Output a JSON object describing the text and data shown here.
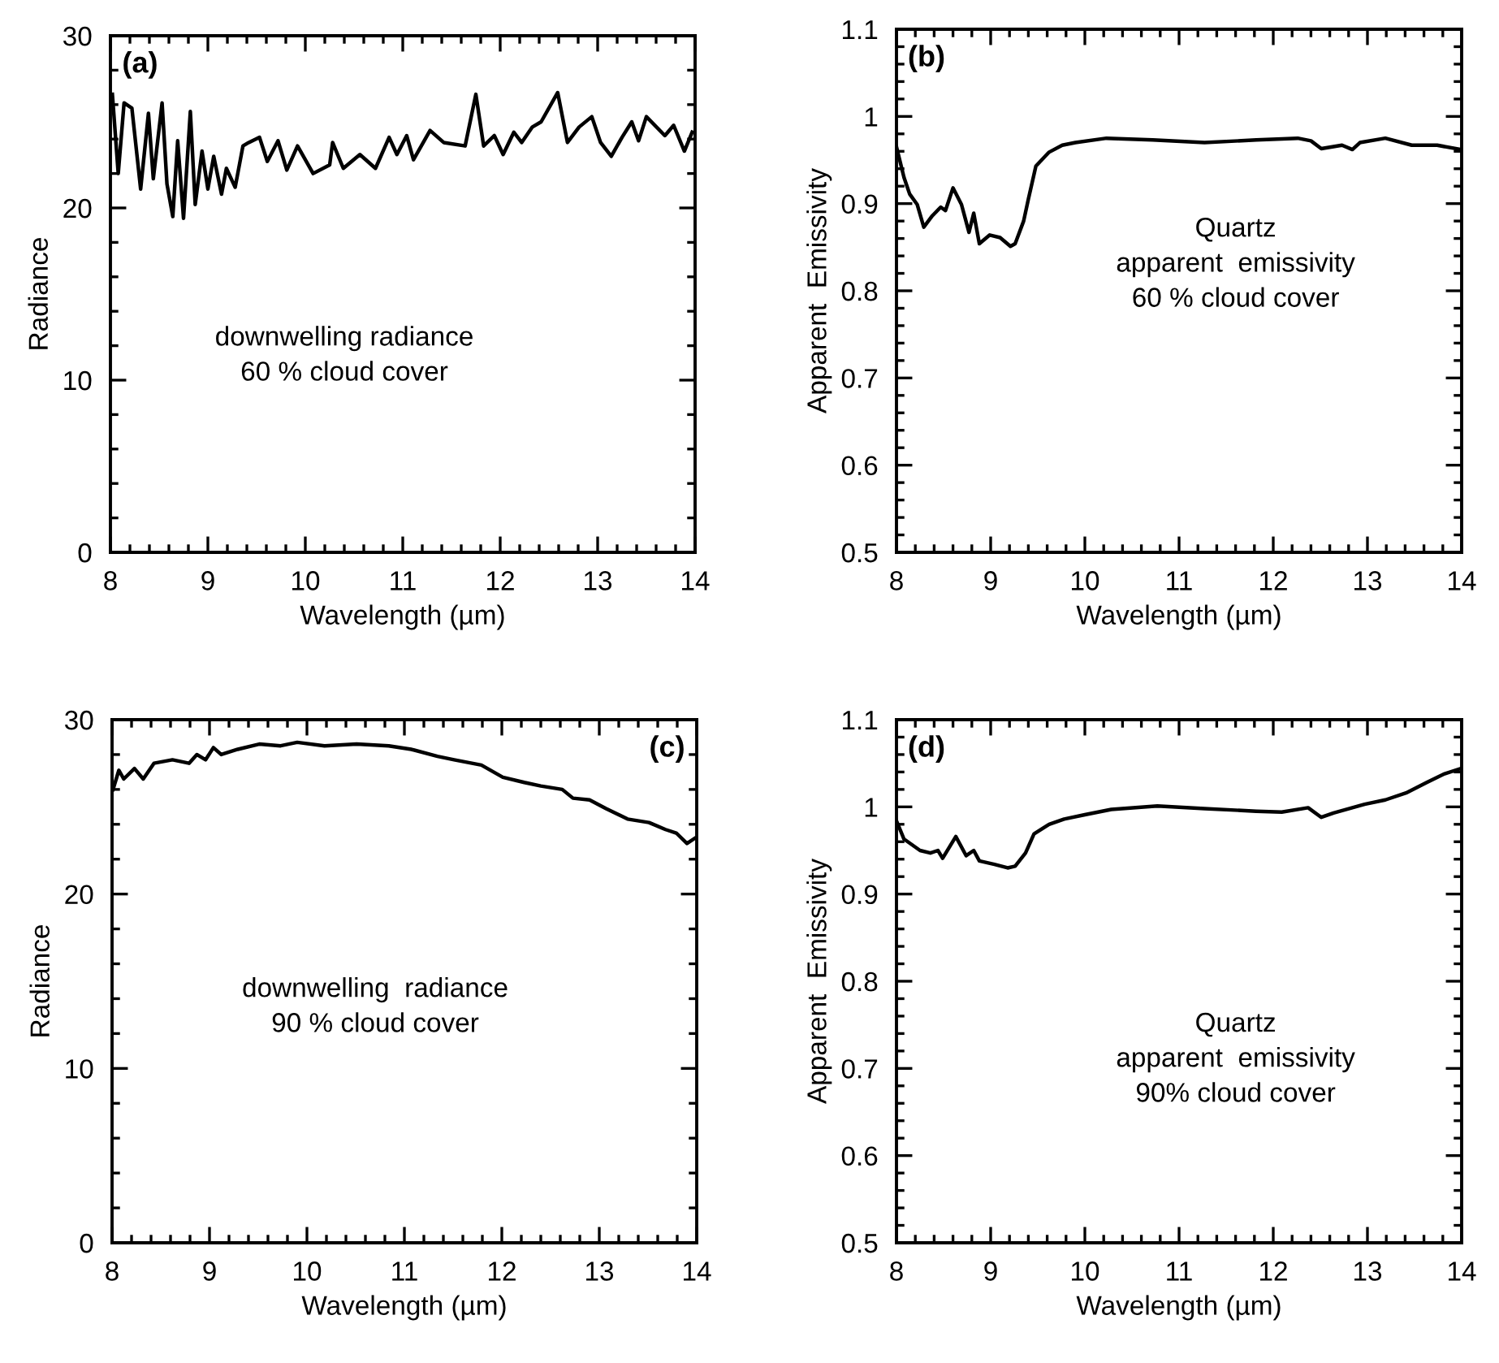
{
  "chart_data": [
    {
      "type": "line",
      "xlabel": "Wavelength (µm)",
      "ylabel": "Radiance",
      "xlim": [
        8,
        14
      ],
      "ylim": [
        0,
        30
      ],
      "xticks": [
        8,
        9,
        10,
        11,
        12,
        13,
        14
      ],
      "yticks": [
        0,
        10,
        20,
        30
      ],
      "grid": false,
      "legend": false,
      "annotations": [
        "(a)",
        "downwelling radiance\n60 % cloud cover"
      ],
      "series": [
        {
          "color": "#000000",
          "x": [
            8.02,
            8.08,
            8.14,
            8.22,
            8.31,
            8.39,
            8.44,
            8.53,
            8.58,
            8.64,
            8.69,
            8.75,
            8.82,
            8.87,
            8.94,
            9.0,
            9.06,
            9.14,
            9.19,
            9.28,
            9.36,
            9.42,
            9.53,
            9.61,
            9.72,
            9.81,
            9.92,
            10.08,
            10.25,
            10.28,
            10.39,
            10.56,
            10.72,
            10.86,
            10.94,
            11.04,
            11.11,
            11.28,
            11.42,
            11.64,
            11.75,
            11.83,
            11.94,
            12.03,
            12.14,
            12.22,
            12.33,
            12.42,
            12.59,
            12.69,
            12.81,
            12.94,
            13.03,
            13.14,
            13.25,
            13.35,
            13.42,
            13.5,
            13.69,
            13.78,
            13.89,
            13.97
          ],
          "values": [
            26.6,
            22.0,
            26.1,
            25.8,
            21.1,
            25.5,
            21.7,
            26.1,
            21.4,
            19.5,
            23.9,
            19.4,
            25.6,
            20.2,
            23.3,
            21.1,
            23.0,
            20.8,
            22.3,
            21.2,
            23.6,
            23.8,
            24.1,
            22.7,
            23.9,
            22.2,
            23.6,
            22.0,
            22.5,
            23.8,
            22.3,
            23.1,
            22.3,
            24.1,
            23.1,
            24.2,
            22.8,
            24.5,
            23.8,
            23.6,
            26.6,
            23.6,
            24.2,
            23.1,
            24.4,
            23.8,
            24.7,
            25.0,
            26.7,
            23.8,
            24.7,
            25.3,
            23.8,
            23.0,
            24.1,
            25.0,
            23.9,
            25.3,
            24.2,
            24.8,
            23.3,
            24.4
          ]
        }
      ]
    },
    {
      "type": "line",
      "xlabel": "Wavelength (µm)",
      "ylabel": "Apparent  Emissivity",
      "xlim": [
        8,
        14
      ],
      "ylim": [
        0.5,
        1.1
      ],
      "xticks": [
        8,
        9,
        10,
        11,
        12,
        13,
        14
      ],
      "yticks": [
        0.5,
        0.6,
        0.7,
        0.8,
        0.9,
        1,
        1.1
      ],
      "grid": false,
      "legend": false,
      "annotations": [
        "(b)",
        "Quartz\napparent  emissivity\n60 % cloud cover"
      ],
      "series": [
        {
          "color": "#000000",
          "x": [
            8.0,
            8.08,
            8.14,
            8.22,
            8.29,
            8.38,
            8.47,
            8.52,
            8.6,
            8.69,
            8.77,
            8.82,
            8.88,
            8.99,
            9.1,
            9.21,
            9.26,
            9.35,
            9.4,
            9.48,
            9.62,
            9.76,
            9.9,
            10.23,
            10.72,
            11.27,
            11.82,
            12.26,
            12.4,
            12.51,
            12.73,
            12.84,
            12.92,
            13.19,
            13.47,
            13.74,
            13.99
          ],
          "values": [
            0.965,
            0.93,
            0.911,
            0.899,
            0.873,
            0.886,
            0.896,
            0.892,
            0.918,
            0.899,
            0.867,
            0.889,
            0.854,
            0.864,
            0.861,
            0.851,
            0.854,
            0.88,
            0.905,
            0.943,
            0.959,
            0.967,
            0.97,
            0.975,
            0.973,
            0.97,
            0.973,
            0.975,
            0.972,
            0.963,
            0.967,
            0.962,
            0.97,
            0.975,
            0.967,
            0.967,
            0.962
          ]
        }
      ]
    },
    {
      "type": "line",
      "xlabel": "Wavelength (µm)",
      "ylabel": "Radiance",
      "xlim": [
        8,
        14
      ],
      "ylim": [
        0,
        30
      ],
      "xticks": [
        8,
        9,
        10,
        11,
        12,
        13,
        14
      ],
      "yticks": [
        0,
        10,
        20,
        30
      ],
      "grid": false,
      "legend": false,
      "annotations": [
        "(c)",
        "downwelling  radiance\n90 % cloud cover"
      ],
      "series": [
        {
          "color": "#000000",
          "x": [
            8.01,
            8.07,
            8.12,
            8.23,
            8.32,
            8.43,
            8.62,
            8.79,
            8.87,
            8.96,
            9.04,
            9.12,
            9.29,
            9.51,
            9.73,
            9.9,
            10.18,
            10.51,
            10.84,
            11.07,
            11.34,
            11.51,
            11.79,
            12.01,
            12.23,
            12.4,
            12.62,
            12.73,
            12.9,
            13.07,
            13.29,
            13.51,
            13.68,
            13.79,
            13.9,
            13.98
          ],
          "values": [
            26.0,
            27.1,
            26.6,
            27.2,
            26.6,
            27.5,
            27.7,
            27.5,
            28.0,
            27.7,
            28.4,
            28.0,
            28.3,
            28.6,
            28.5,
            28.7,
            28.5,
            28.6,
            28.5,
            28.3,
            27.9,
            27.7,
            27.4,
            26.7,
            26.4,
            26.2,
            26.0,
            25.5,
            25.4,
            24.9,
            24.3,
            24.1,
            23.7,
            23.5,
            22.9,
            23.2
          ]
        }
      ]
    },
    {
      "type": "line",
      "xlabel": "Wavelength (µm)",
      "ylabel": "Apparent  Emissivity",
      "xlim": [
        8,
        14
      ],
      "ylim": [
        0.5,
        1.1
      ],
      "xticks": [
        8,
        9,
        10,
        11,
        12,
        13,
        14
      ],
      "yticks": [
        0.5,
        0.6,
        0.7,
        0.8,
        0.9,
        1,
        1.1
      ],
      "grid": false,
      "legend": false,
      "annotations": [
        "(d)",
        "Quartz\napparent  emissivity\n90% cloud cover"
      ],
      "series": [
        {
          "color": "#000000",
          "x": [
            8.0,
            8.08,
            8.25,
            8.36,
            8.44,
            8.49,
            8.63,
            8.74,
            8.82,
            8.88,
            9.04,
            9.18,
            9.26,
            9.37,
            9.46,
            9.62,
            9.78,
            10.0,
            10.28,
            10.77,
            11.27,
            11.82,
            12.09,
            12.37,
            12.51,
            12.64,
            12.97,
            13.19,
            13.41,
            13.63,
            13.82,
            13.99
          ],
          "values": [
            0.984,
            0.963,
            0.95,
            0.947,
            0.95,
            0.941,
            0.966,
            0.944,
            0.95,
            0.938,
            0.934,
            0.93,
            0.932,
            0.947,
            0.969,
            0.98,
            0.986,
            0.991,
            0.997,
            1.001,
            0.998,
            0.995,
            0.994,
            0.999,
            0.988,
            0.993,
            1.003,
            1.008,
            1.016,
            1.028,
            1.038,
            1.044
          ]
        }
      ]
    }
  ]
}
